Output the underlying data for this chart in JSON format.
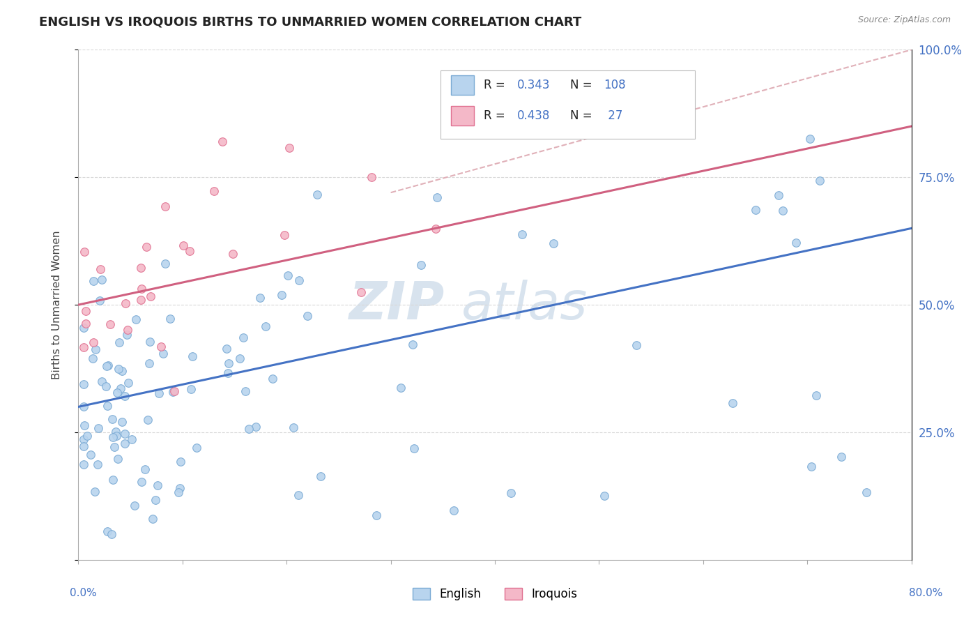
{
  "title": "ENGLISH VS IROQUOIS BIRTHS TO UNMARRIED WOMEN CORRELATION CHART",
  "source": "Source: ZipAtlas.com",
  "ylabel": "Births to Unmarried Women",
  "xmin": 0.0,
  "xmax": 80.0,
  "ymin": 0.0,
  "ymax": 100.0,
  "english_R": 0.343,
  "english_N": 108,
  "iroquois_R": 0.438,
  "iroquois_N": 27,
  "english_dot_fill": "#b8d4ee",
  "english_dot_edge": "#7aaad4",
  "iroquois_dot_fill": "#f4b8c8",
  "iroquois_dot_edge": "#e07090",
  "english_line_color": "#4472c4",
  "iroquois_line_color": "#d06080",
  "diagonal_color": "#e0b0b8",
  "grid_color": "#d8d8d8",
  "right_axis_color": "#4472c4",
  "watermark_zip_color": "#c8d8e8",
  "watermark_atlas_color": "#c8d8e8",
  "english_line_x0": 0.0,
  "english_line_y0": 30.0,
  "english_line_x1": 80.0,
  "english_line_y1": 65.0,
  "iroquois_line_x0": 0.0,
  "iroquois_line_y0": 50.0,
  "iroquois_line_x1": 80.0,
  "iroquois_line_y1": 85.0,
  "diag_line_x0": 30.0,
  "diag_line_y0": 72.0,
  "diag_line_x1": 80.0,
  "diag_line_y1": 100.0,
  "legend_R_english": "R = 0.343",
  "legend_N_english": "N = 108",
  "legend_R_iroquois": "R = 0.438",
  "legend_N_iroquois": "N =  27"
}
